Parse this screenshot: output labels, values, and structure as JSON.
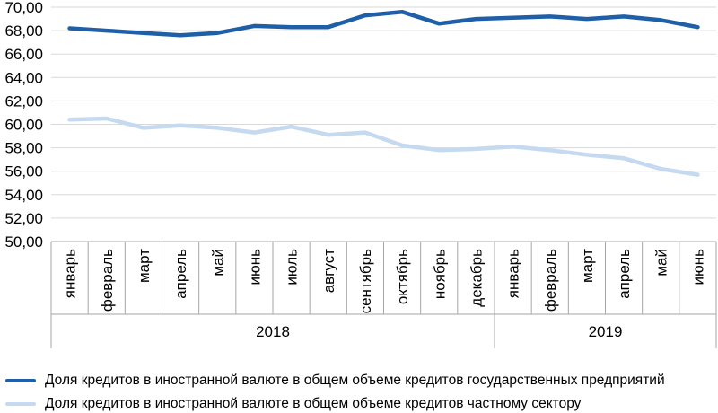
{
  "chart_data": {
    "type": "line",
    "ylim": [
      50,
      70
    ],
    "y_ticks": [
      "50,00",
      "52,00",
      "54,00",
      "56,00",
      "58,00",
      "60,00",
      "62,00",
      "64,00",
      "66,00",
      "68,00",
      "70,00"
    ],
    "grid": "horizontal",
    "categories": [
      "январь",
      "февраль",
      "март",
      "апрель",
      "май",
      "июнь",
      "июль",
      "август",
      "сентябрь",
      "октябрь",
      "ноябрь",
      "декабрь",
      "январь",
      "февраль",
      "март",
      "апрель",
      "май",
      "июнь"
    ],
    "groups": [
      {
        "label": "2018",
        "span": 12
      },
      {
        "label": "2019",
        "span": 6
      }
    ],
    "legend_position": "bottom",
    "series": [
      {
        "name": "Доля кредитов в иностранной валюте в общем объеме кредитов государственных предприятий",
        "color": "#1f5fa8",
        "values": [
          68.2,
          68.0,
          67.8,
          67.6,
          67.8,
          68.4,
          68.3,
          68.3,
          69.3,
          69.6,
          68.6,
          69.0,
          69.1,
          69.2,
          69.0,
          69.2,
          68.9,
          68.3
        ]
      },
      {
        "name": "Доля кредитов в иностранной валюте в общем объеме кредитов частному сектору",
        "color": "#c5d9f0",
        "values": [
          60.4,
          60.5,
          59.7,
          59.9,
          59.7,
          59.3,
          59.8,
          59.1,
          59.3,
          58.2,
          57.8,
          57.9,
          58.1,
          57.8,
          57.4,
          57.1,
          56.2,
          55.7
        ]
      }
    ]
  }
}
